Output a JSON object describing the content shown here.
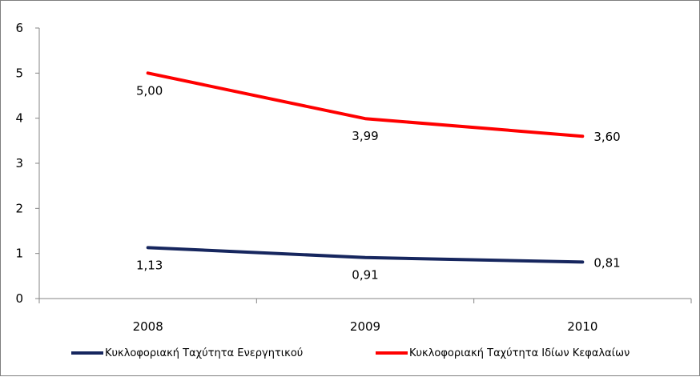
{
  "chart_data": {
    "type": "line",
    "categories": [
      "2008",
      "2009",
      "2010"
    ],
    "series": [
      {
        "name": "Κυκλοφοριακή Ταχύτητα Ενεργητικού",
        "values": [
          1.13,
          0.91,
          0.81
        ],
        "labels": [
          "1,13",
          "0,91",
          "0,81"
        ],
        "color": "#16265e"
      },
      {
        "name": "Κυκλοφοριακή Ταχύτητα Ιδίων Κεφαλαίων",
        "values": [
          5.0,
          3.99,
          3.6
        ],
        "labels": [
          "5,00",
          "3,99",
          "3,60"
        ],
        "color": "#ff0000"
      }
    ],
    "yticks": [
      "0",
      "1",
      "2",
      "3",
      "4",
      "5",
      "6"
    ],
    "ylim": [
      0,
      6
    ],
    "title": "",
    "xlabel": "",
    "ylabel": "",
    "grid": false,
    "legend_position": "bottom"
  }
}
